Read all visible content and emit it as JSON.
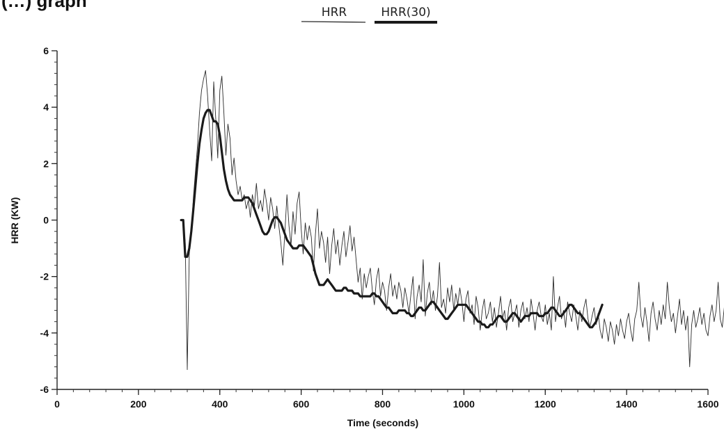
{
  "page": {
    "title_fragment": "(…) graph"
  },
  "chart_data": {
    "type": "line",
    "xlabel": "Time (seconds)",
    "ylabel": "HRR (KW)",
    "xlim": [
      0,
      1600
    ],
    "ylim": [
      -6,
      6
    ],
    "x_ticks": [
      0,
      200,
      400,
      600,
      800,
      1000,
      1200,
      1400,
      1600
    ],
    "y_ticks": [
      -6,
      -4,
      -2,
      0,
      2,
      4,
      6
    ],
    "x_minor_step": 40,
    "y_minor_step": 0.4,
    "grid": false,
    "legend_position": "top-center",
    "series": [
      {
        "name": "HRR",
        "style": "thin",
        "color": "#2a2a2a",
        "x_start": 305,
        "x_step": 5,
        "values": [
          0.0,
          0.0,
          -0.8,
          -5.3,
          -1.2,
          -0.4,
          0.8,
          1.7,
          2.6,
          3.8,
          4.6,
          5.0,
          5.3,
          4.4,
          3.2,
          2.1,
          4.9,
          3.6,
          2.2,
          4.6,
          5.1,
          3.8,
          2.3,
          3.4,
          2.9,
          1.6,
          2.2,
          1.4,
          0.9,
          1.2,
          0.7,
          0.9,
          0.4,
          0.7,
          0.1,
          0.9,
          0.5,
          1.3,
          0.4,
          0.7,
          0.3,
          1.1,
          0.6,
          0.0,
          0.8,
          0.4,
          -0.3,
          0.5,
          -0.2,
          -0.8,
          -1.6,
          -0.4,
          0.9,
          -0.2,
          -0.9,
          0.3,
          -0.5,
          0.6,
          1.0,
          -0.3,
          -1.2,
          -0.1,
          -0.7,
          -0.2,
          -0.6,
          -1.8,
          -0.5,
          0.4,
          -1.0,
          -0.4,
          -0.8,
          -1.5,
          -0.6,
          -1.9,
          -0.9,
          -0.3,
          -1.2,
          -0.7,
          -1.6,
          -0.9,
          -0.4,
          -1.3,
          -0.8,
          -0.2,
          -1.1,
          -0.6,
          -1.4,
          -2.2,
          -1.7,
          -2.8,
          -1.9,
          -2.4,
          -2.0,
          -1.7,
          -2.5,
          -3.0,
          -2.1,
          -1.7,
          -2.7,
          -2.2,
          -2.5,
          -3.2,
          -2.4,
          -1.9,
          -2.7,
          -2.3,
          -2.8,
          -2.2,
          -2.5,
          -3.1,
          -2.4,
          -2.8,
          -3.3,
          -2.6,
          -2.0,
          -3.5,
          -2.7,
          -2.3,
          -2.9,
          -1.4,
          -3.4,
          -2.6,
          -2.2,
          -3.0,
          -2.5,
          -3.2,
          -2.7,
          -1.5,
          -3.1,
          -2.8,
          -3.3,
          -2.4,
          -2.9,
          -2.3,
          -3.2,
          -2.6,
          -3.0,
          -2.4,
          -2.9,
          -3.6,
          -2.8,
          -2.5,
          -3.3,
          -3.0,
          -3.7,
          -2.7,
          -3.1,
          -3.9,
          -3.2,
          -2.8,
          -3.5,
          -3.3,
          -2.9,
          -3.6,
          -3.1,
          -3.8,
          -3.3,
          -2.7,
          -3.5,
          -3.2,
          -3.9,
          -3.1,
          -2.8,
          -3.6,
          -3.3,
          -3.0,
          -3.8,
          -3.2,
          -2.9,
          -3.5,
          -3.1,
          -3.6,
          -2.8,
          -3.3,
          -3.9,
          -3.2,
          -2.9,
          -3.4,
          -3.6,
          -3.0,
          -3.7,
          -3.3,
          -3.9,
          -2.0,
          -3.6,
          -3.1,
          -2.7,
          -3.5,
          -3.2,
          -3.8,
          -2.9,
          -3.3,
          -3.6,
          -3.0,
          -3.4,
          -3.9,
          -3.2,
          -3.6,
          -3.1,
          -2.8,
          -3.5,
          -3.8,
          -3.4,
          -3.1,
          -3.7,
          -3.3,
          -3.9,
          -4.2,
          -3.5,
          -3.8,
          -4.3,
          -3.6,
          -3.9,
          -4.4,
          -3.7,
          -4.1,
          -3.5,
          -3.9,
          -4.2,
          -3.6,
          -3.3,
          -3.9,
          -4.3,
          -3.5,
          -3.2,
          -2.2,
          -3.4,
          -3.8,
          -3.1,
          -3.6,
          -4.3,
          -3.3,
          -2.9,
          -3.5,
          -3.9,
          -3.2,
          -3.7,
          -3.0,
          -3.5,
          -2.2,
          -3.1,
          -3.6,
          -3.3,
          -4.0,
          -3.4,
          -2.8,
          -3.7,
          -3.2,
          -3.9,
          -3.4,
          -5.2,
          -3.7,
          -3.2,
          -3.8,
          -3.5,
          -3.1,
          -3.7,
          -3.3,
          -3.9,
          -4.1,
          -3.4,
          -3.0,
          -3.6,
          -3.2,
          -2.2,
          -3.5,
          -3.8,
          -3.1,
          -3.6,
          -3.3,
          -3.9,
          -3.2,
          -2.8,
          -3.6,
          -4.2,
          -3.4,
          -3.1,
          -3.7,
          -3.3,
          -2.9,
          -3.5,
          -3.2,
          -3.8,
          -3.4,
          -3.0,
          -3.6,
          -3.3,
          -2.7,
          -3.4,
          -3.1,
          -2.2,
          -3.3,
          -2.9,
          -3.6,
          -3.2,
          -3.8,
          -3.5,
          -3.1,
          -3.7,
          -3.4,
          -3.0,
          -3.6,
          -3.9,
          -3.5,
          -4.1,
          -3.7,
          -4.5,
          -3.8,
          -4.7,
          -4.1,
          -3.6,
          -3.1,
          -3.3
        ]
      },
      {
        "name": "HRR(30)",
        "style": "thick",
        "color": "#1a1a1a",
        "x_start": 305,
        "x_step": 5,
        "values": [
          0.0,
          0.0,
          -1.3,
          -1.3,
          -1.0,
          -0.4,
          0.4,
          1.2,
          2.0,
          2.7,
          3.2,
          3.6,
          3.8,
          3.9,
          3.9,
          3.7,
          3.5,
          3.5,
          3.4,
          3.0,
          2.4,
          1.8,
          1.4,
          1.1,
          0.9,
          0.8,
          0.7,
          0.7,
          0.7,
          0.7,
          0.7,
          0.8,
          0.8,
          0.8,
          0.7,
          0.6,
          0.4,
          0.2,
          0.0,
          -0.2,
          -0.4,
          -0.5,
          -0.5,
          -0.4,
          -0.2,
          0.0,
          0.1,
          0.1,
          0.0,
          -0.1,
          -0.3,
          -0.5,
          -0.7,
          -0.8,
          -0.9,
          -1.0,
          -1.0,
          -1.0,
          -0.9,
          -0.9,
          -0.9,
          -1.0,
          -1.1,
          -1.2,
          -1.3,
          -1.6,
          -1.9,
          -2.1,
          -2.3,
          -2.3,
          -2.3,
          -2.2,
          -2.1,
          -2.2,
          -2.3,
          -2.4,
          -2.5,
          -2.5,
          -2.5,
          -2.5,
          -2.4,
          -2.4,
          -2.5,
          -2.5,
          -2.5,
          -2.6,
          -2.6,
          -2.6,
          -2.7,
          -2.7,
          -2.7,
          -2.7,
          -2.7,
          -2.7,
          -2.6,
          -2.6,
          -2.7,
          -2.7,
          -2.8,
          -2.9,
          -3.0,
          -3.1,
          -3.1,
          -3.2,
          -3.3,
          -3.3,
          -3.3,
          -3.2,
          -3.2,
          -3.2,
          -3.2,
          -3.3,
          -3.3,
          -3.4,
          -3.4,
          -3.3,
          -3.2,
          -3.1,
          -3.1,
          -3.2,
          -3.2,
          -3.1,
          -3.0,
          -2.9,
          -2.9,
          -3.0,
          -3.1,
          -3.2,
          -3.3,
          -3.4,
          -3.5,
          -3.5,
          -3.4,
          -3.3,
          -3.2,
          -3.1,
          -3.0,
          -3.0,
          -3.0,
          -3.0,
          -3.0,
          -3.1,
          -3.2,
          -3.3,
          -3.4,
          -3.5,
          -3.6,
          -3.6,
          -3.7,
          -3.7,
          -3.8,
          -3.8,
          -3.7,
          -3.7,
          -3.6,
          -3.5,
          -3.4,
          -3.4,
          -3.5,
          -3.6,
          -3.6,
          -3.5,
          -3.4,
          -3.3,
          -3.3,
          -3.4,
          -3.5,
          -3.6,
          -3.5,
          -3.4,
          -3.4,
          -3.4,
          -3.3,
          -3.3,
          -3.3,
          -3.3,
          -3.4,
          -3.4,
          -3.4,
          -3.3,
          -3.3,
          -3.2,
          -3.1,
          -3.1,
          -3.2,
          -3.3,
          -3.4,
          -3.4,
          -3.3,
          -3.2,
          -3.1,
          -3.0,
          -3.0,
          -3.1,
          -3.2,
          -3.3,
          -3.3,
          -3.4,
          -3.5,
          -3.6,
          -3.7,
          -3.8,
          -3.8,
          -3.7,
          -3.6,
          -3.4,
          -3.2,
          -3.0
        ]
      }
    ]
  }
}
